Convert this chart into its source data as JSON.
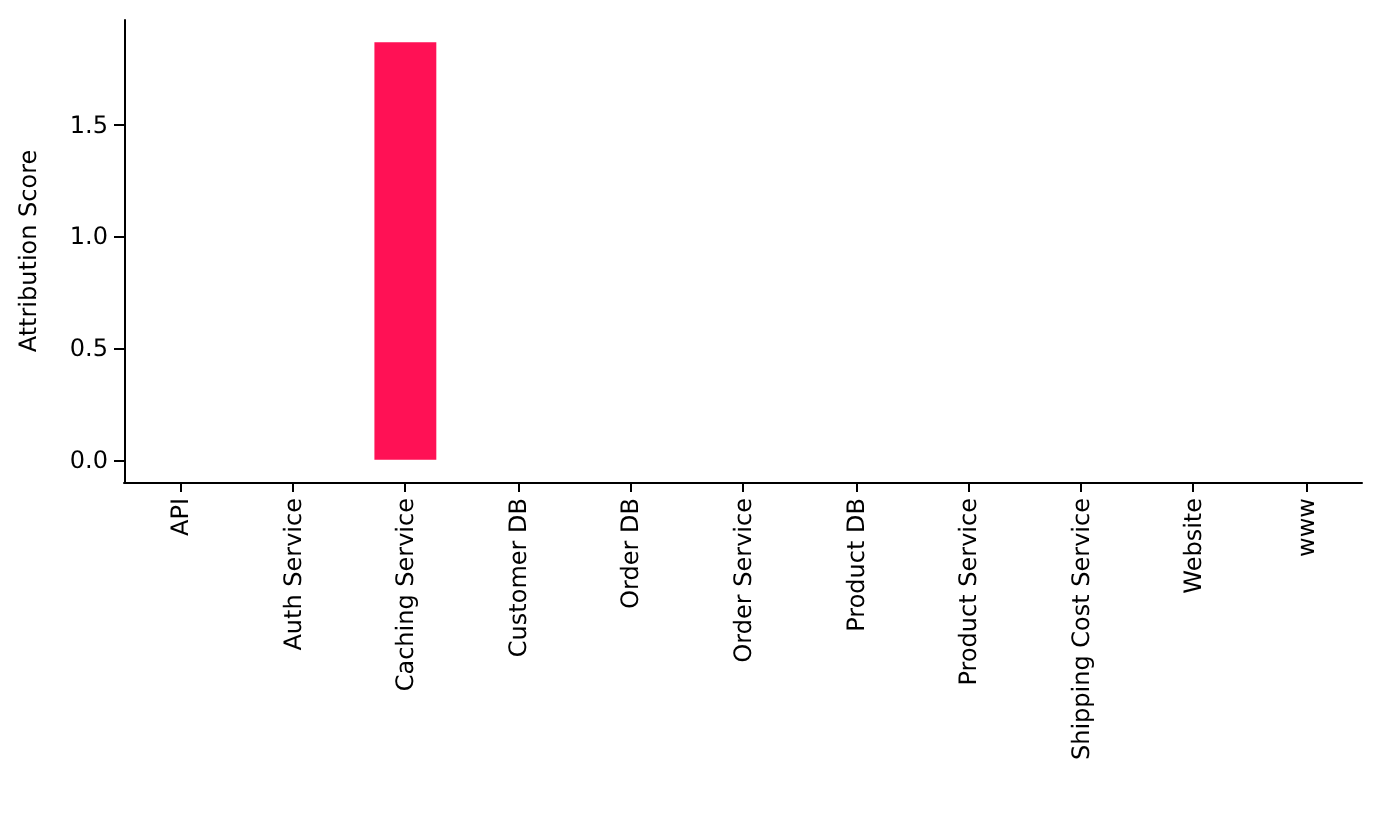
{
  "chart_data": {
    "type": "bar",
    "ylabel": "Attribution Score",
    "categories": [
      "API",
      "Auth Service",
      "Caching Service",
      "Customer DB",
      "Order DB",
      "Order Service",
      "Product DB",
      "Product Service",
      "Shipping Cost Service",
      "Website",
      "www"
    ],
    "values": [
      0,
      0,
      1.87,
      0,
      0,
      0,
      0,
      0,
      0,
      0,
      0
    ],
    "color": "#ff1155",
    "ylim": [
      -0.1,
      1.97
    ],
    "yticks": [
      {
        "value": 0,
        "label": "0.0"
      },
      0.5,
      {
        "value": 1,
        "label": "1.0"
      },
      1.5
    ],
    "grid": false
  }
}
